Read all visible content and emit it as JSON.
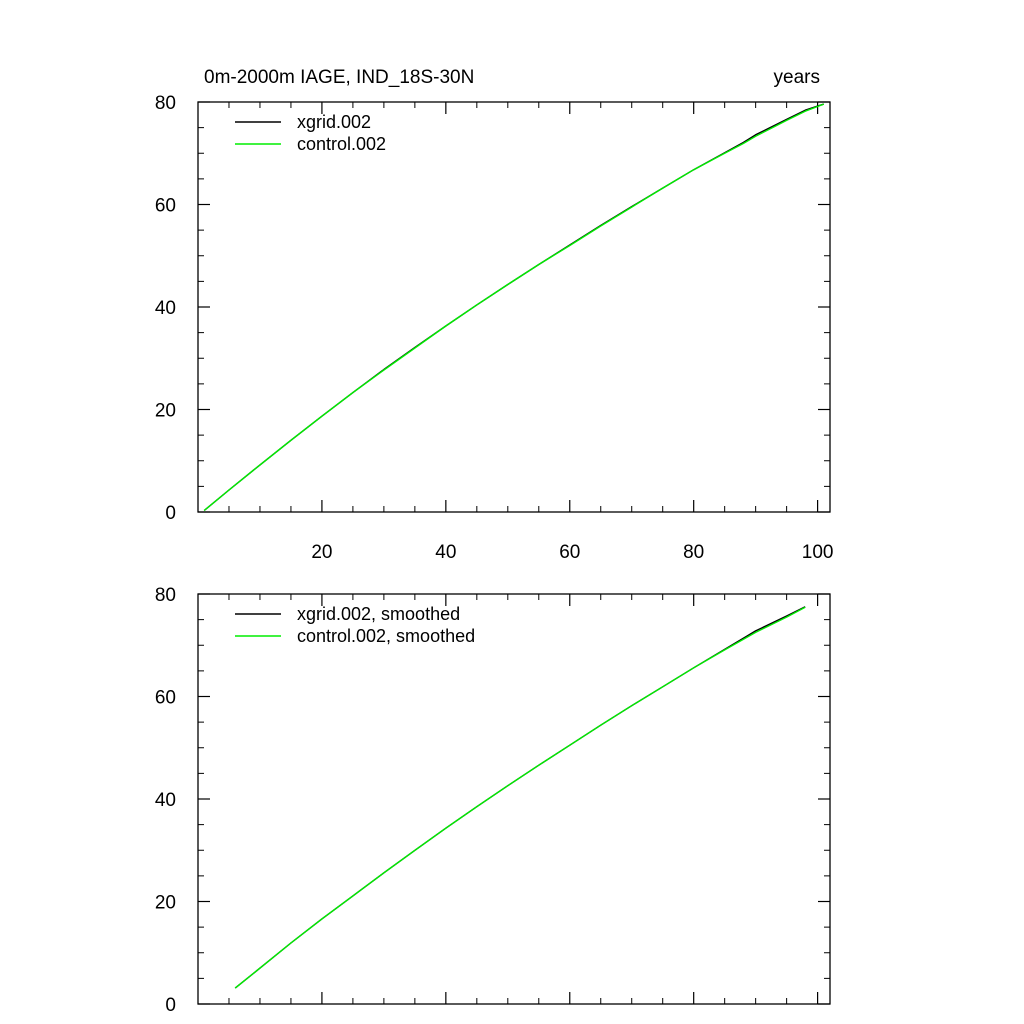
{
  "chart_data": [
    {
      "type": "line",
      "title_left": "0m-2000m IAGE, IND_18S-30N",
      "title_right": "years",
      "xlim": [
        0,
        102
      ],
      "ylim": [
        0,
        80
      ],
      "x_ticks": [
        20,
        40,
        60,
        80,
        100
      ],
      "y_ticks": [
        0,
        20,
        40,
        60,
        80
      ],
      "x_tick_labels_shown": true,
      "legend_position": "top-left",
      "series": [
        {
          "name": "xgrid.002",
          "color": "#000000",
          "x": [
            1,
            5,
            10,
            15,
            20,
            25,
            30,
            35,
            40,
            45,
            50,
            55,
            60,
            65,
            70,
            75,
            80,
            85,
            88,
            90,
            95,
            98,
            101
          ],
          "y": [
            0.3,
            4.3,
            9.2,
            14.0,
            18.7,
            23.3,
            27.8,
            32.1,
            36.3,
            40.4,
            44.4,
            48.3,
            52.1,
            55.9,
            59.6,
            63.2,
            66.8,
            70.1,
            72.1,
            73.6,
            76.6,
            78.4,
            79.6
          ]
        },
        {
          "name": "control.002",
          "color": "#00ee00",
          "x": [
            1,
            5,
            10,
            15,
            20,
            25,
            30,
            35,
            40,
            45,
            50,
            55,
            60,
            65,
            70,
            75,
            80,
            85,
            88,
            90,
            95,
            98,
            101
          ],
          "y": [
            0.3,
            4.3,
            9.2,
            14.0,
            18.7,
            23.3,
            27.7,
            32.0,
            36.3,
            40.4,
            44.4,
            48.3,
            52.0,
            55.8,
            59.5,
            63.2,
            66.8,
            70.0,
            71.9,
            73.3,
            76.4,
            78.2,
            79.6
          ]
        }
      ]
    },
    {
      "type": "line",
      "xlim": [
        0,
        102
      ],
      "ylim": [
        0,
        80
      ],
      "x_ticks": [
        20,
        40,
        60,
        80,
        100
      ],
      "y_ticks": [
        0,
        20,
        40,
        60,
        80
      ],
      "x_tick_labels_shown": false,
      "legend_position": "top-left",
      "series": [
        {
          "name": "xgrid.002, smoothed",
          "color": "#000000",
          "x": [
            6,
            10,
            15,
            20,
            25,
            30,
            35,
            40,
            45,
            50,
            55,
            60,
            65,
            70,
            75,
            80,
            85,
            90,
            95,
            98
          ],
          "y": [
            3.1,
            7.0,
            11.9,
            16.6,
            21.1,
            25.6,
            30.0,
            34.3,
            38.5,
            42.6,
            46.6,
            50.5,
            54.4,
            58.2,
            61.9,
            65.6,
            69.2,
            72.8,
            75.7,
            77.5
          ]
        },
        {
          "name": "control.002, smoothed",
          "color": "#00ee00",
          "x": [
            6,
            10,
            15,
            20,
            25,
            30,
            35,
            40,
            45,
            50,
            55,
            60,
            65,
            70,
            75,
            80,
            85,
            90,
            95,
            98
          ],
          "y": [
            3.1,
            7.0,
            11.9,
            16.6,
            21.1,
            25.6,
            30.0,
            34.3,
            38.5,
            42.6,
            46.6,
            50.5,
            54.4,
            58.2,
            61.9,
            65.6,
            69.1,
            72.5,
            75.5,
            77.4
          ]
        }
      ]
    }
  ]
}
